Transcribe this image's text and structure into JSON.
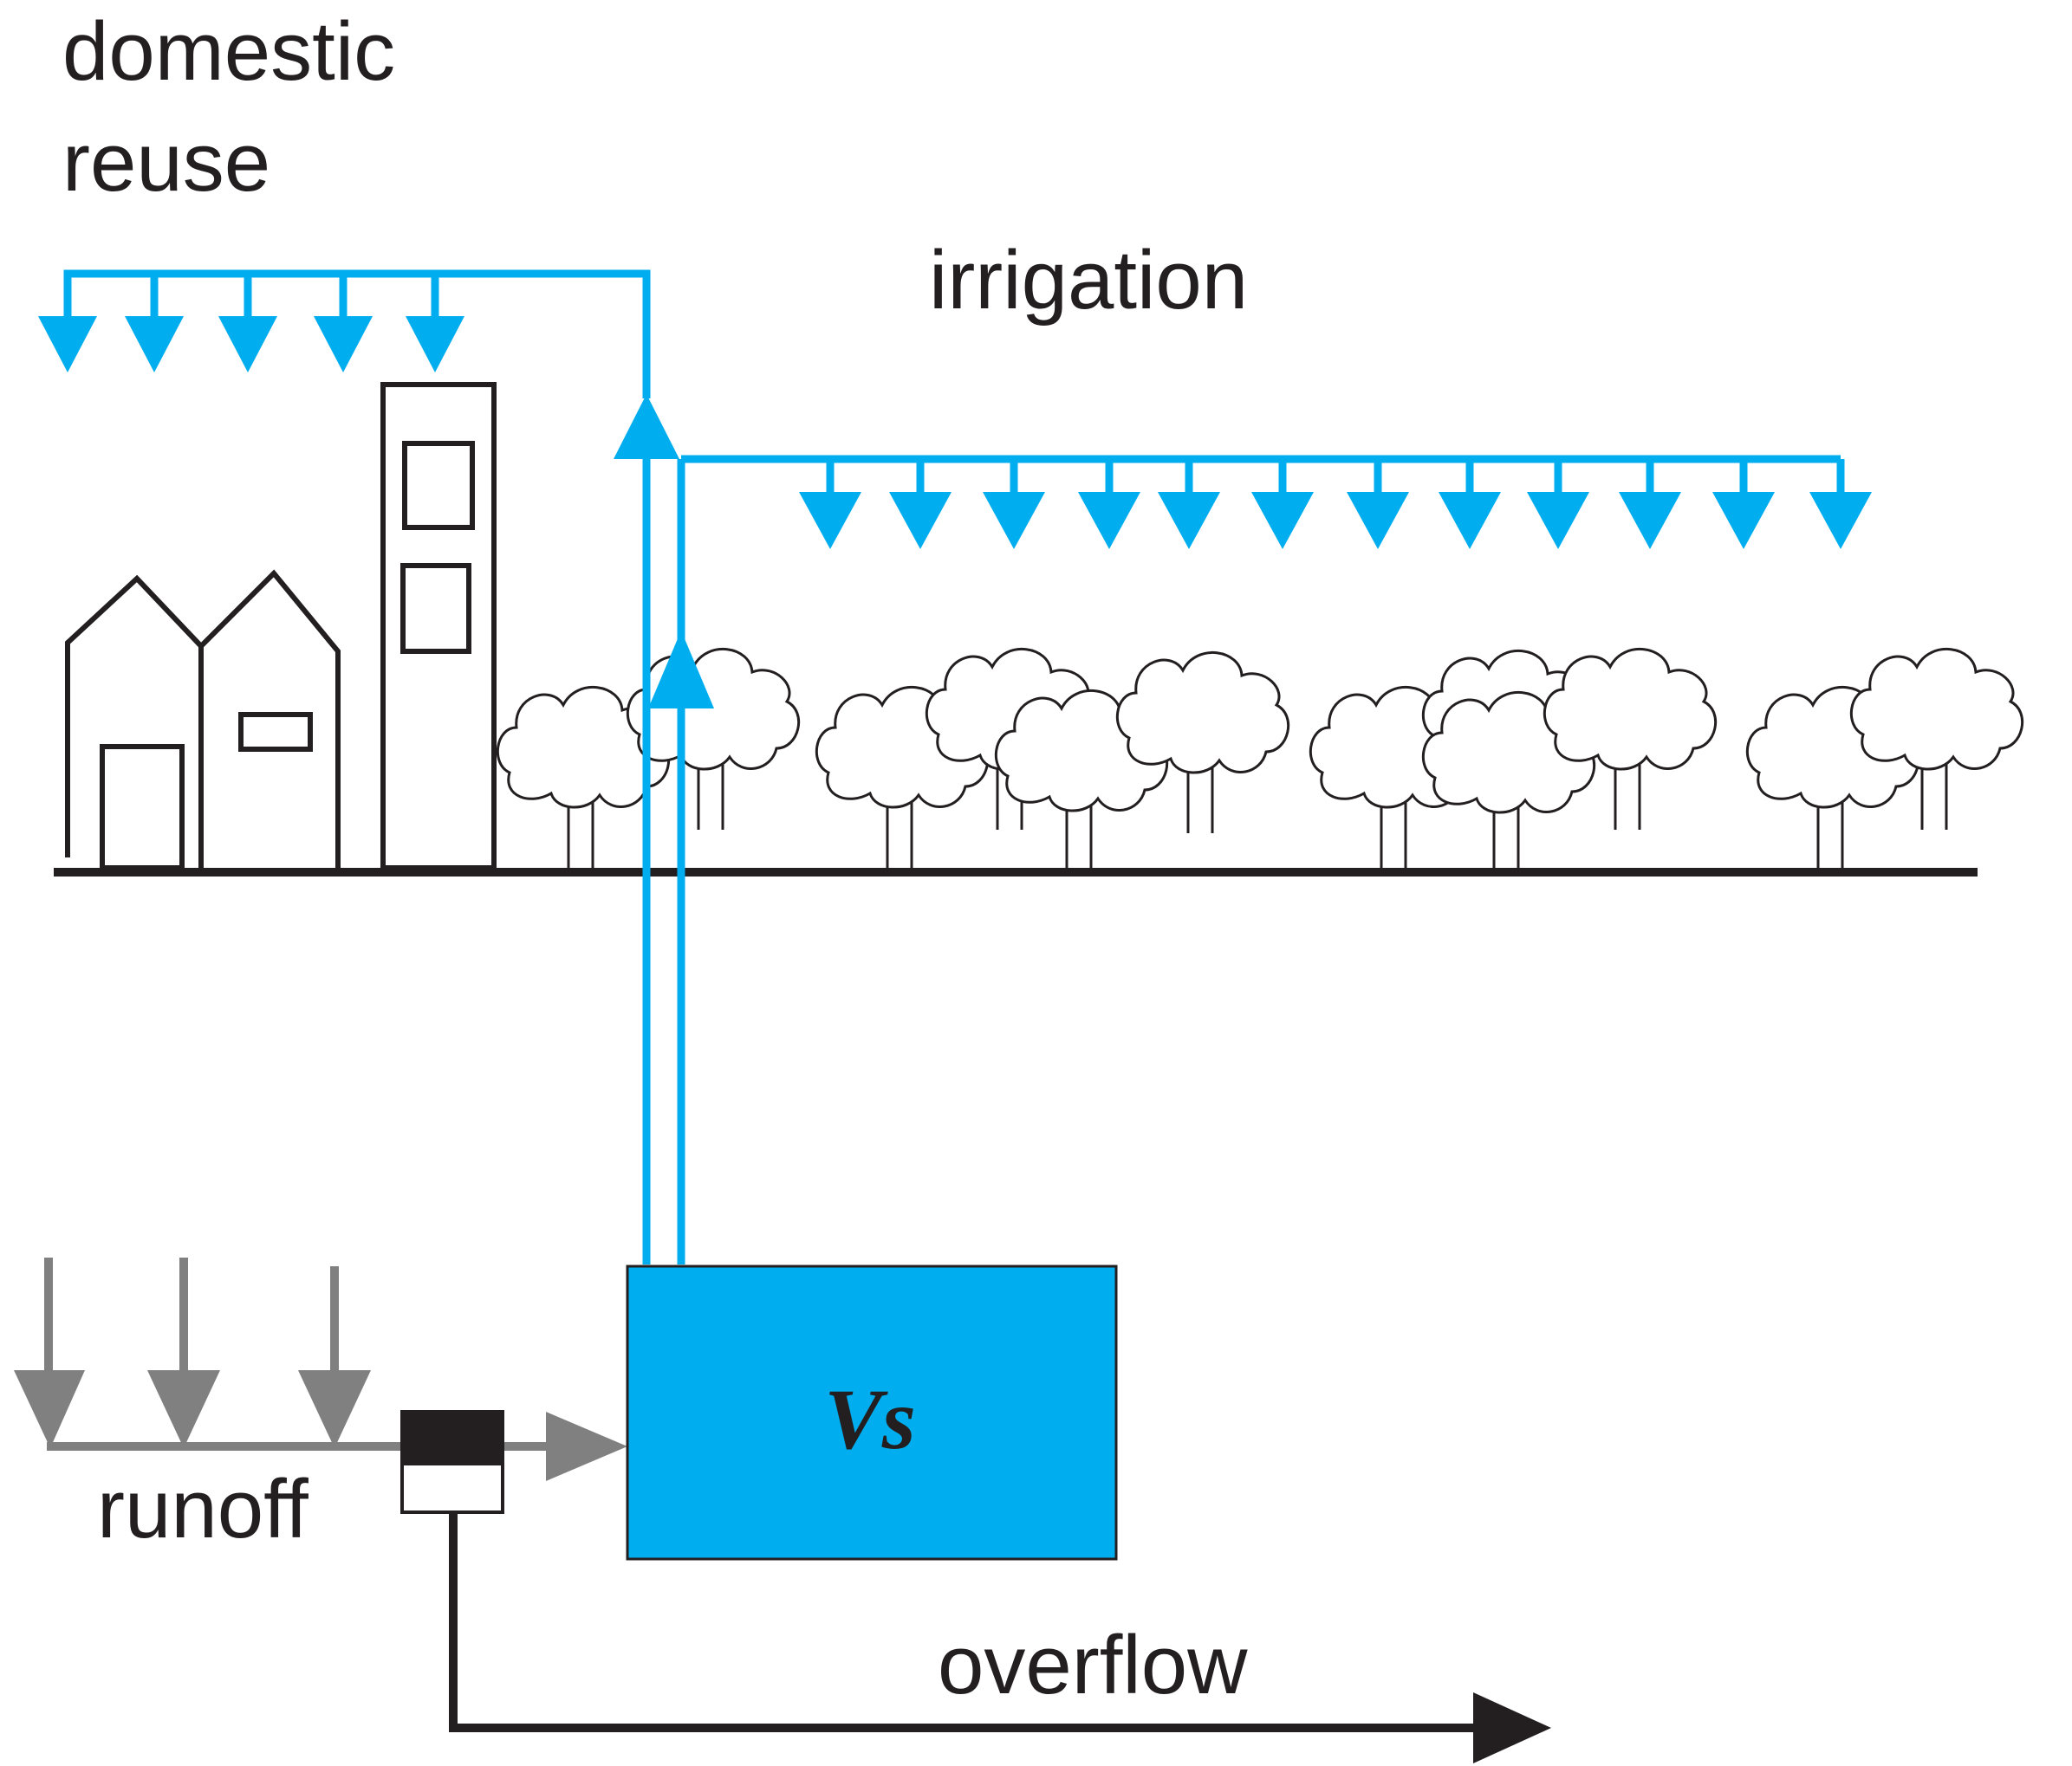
{
  "labels": {
    "domestic_line1": "domestic",
    "domestic_line2": "reuse",
    "irrigation": "irrigation",
    "runoff": "runoff",
    "overflow": "overflow",
    "storage": "Vs"
  },
  "colors": {
    "water": "#00aeef",
    "ink": "#231f20",
    "runoff_gray": "#808080",
    "background": "#ffffff"
  },
  "icons": {
    "domestic_sprinklers": "down-arrow-icon",
    "irrigation_sprinklers": "down-arrow-icon",
    "rain": "down-arrow-icon",
    "pump_up": "up-arrow-icon",
    "overflow_out": "right-arrow-icon",
    "runoff_in": "right-arrow-icon"
  }
}
